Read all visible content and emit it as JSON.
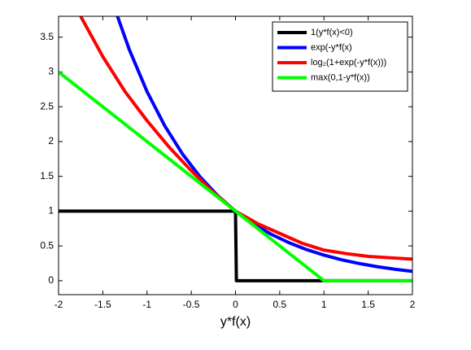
{
  "chart_data": {
    "type": "line",
    "xlabel": "y*f(x)",
    "xlim": [
      -2,
      2
    ],
    "xticks": [
      -2,
      -1.5,
      -1,
      -0.5,
      0,
      0.5,
      1,
      1.5,
      2
    ],
    "ylim": [
      -0.2,
      3.8
    ],
    "yticks": [
      0,
      0.5,
      1,
      1.5,
      2,
      2.5,
      3,
      3.5
    ],
    "grid": false,
    "legend": "upper right",
    "series": [
      {
        "name": "1(y*f(x)<0)",
        "color": "#000000",
        "x": [
          -2,
          0,
          0.01,
          2
        ],
        "values": [
          1,
          1,
          0,
          0
        ]
      },
      {
        "name": "exp(-y*f(x)",
        "color": "#0000ff",
        "x": [
          -1.35,
          -1.2,
          -1,
          -0.8,
          -0.6,
          -0.4,
          -0.2,
          0,
          0.2,
          0.4,
          0.6,
          0.8,
          1,
          1.2,
          1.4,
          1.6,
          1.8,
          2
        ],
        "values": [
          3.857,
          3.32,
          2.718,
          2.226,
          1.822,
          1.492,
          1.221,
          1,
          0.819,
          0.67,
          0.549,
          0.449,
          0.368,
          0.301,
          0.247,
          0.202,
          0.165,
          0.135
        ]
      },
      {
        "name": "log₂(1+exp(-y*f(x)))",
        "color": "#ff0000",
        "x": [
          -1.75,
          -1.5,
          -1.25,
          -1,
          -0.75,
          -0.5,
          -0.25,
          0,
          0.25,
          0.5,
          0.75,
          1,
          1.25,
          1.5,
          1.75,
          2
        ],
        "values": [
          3.8,
          3.22,
          2.72,
          2.3,
          1.92,
          1.58,
          1.27,
          1,
          0.82,
          0.68,
          0.54,
          0.44,
          0.39,
          0.35,
          0.33,
          0.31
        ]
      },
      {
        "name": "max(0,1-y*f(x))",
        "color": "#00ff00",
        "x": [
          -2,
          1,
          2
        ],
        "values": [
          3,
          0,
          0
        ]
      }
    ]
  }
}
